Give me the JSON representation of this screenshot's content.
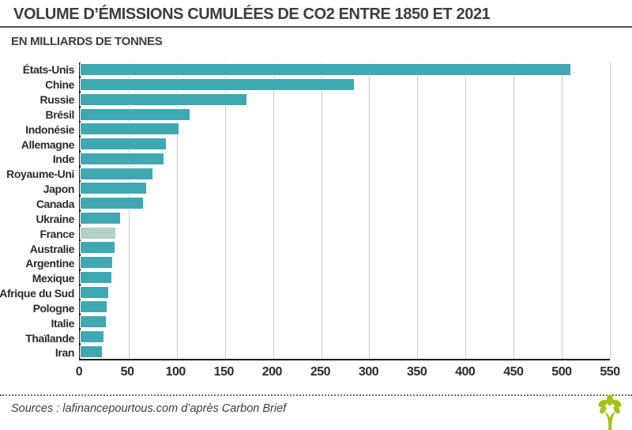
{
  "header": {
    "title": "VOLUME D’ÉMISSIONS CUMULÉES DE CO2 ENTRE 1850 ET 2021",
    "subtitle": "EN MILLIARDS DE TONNES"
  },
  "footer": {
    "source_text": "Sources : lafinancepourtous.com d’après Carbon Brief",
    "logo_icon": "tree-logo"
  },
  "colors": {
    "bar_teal": "#3fa8b1",
    "bar_highlight_pale_green": "#b0d1c3",
    "gridline": "#c9c9c9",
    "axis": "#1c1c1c",
    "text_dark": "#3d3d3d",
    "logo_green": "#a3c117"
  },
  "chart_data": {
    "type": "bar",
    "orientation": "horizontal",
    "title": "VOLUME D’ÉMISSIONS CUMULÉES DE CO2 ENTRE 1850 ET 2021",
    "subtitle": "EN MILLIARDS DE TONNES",
    "unit": "milliards de tonnes de CO2",
    "categories": [
      "États-Unis",
      "Chine",
      "Russie",
      "Brésil",
      "Indonésie",
      "Allemagne",
      "Inde",
      "Royaume-Uni",
      "Japon",
      "Canada",
      "Ukraine",
      "France",
      "Australie",
      "Argentine",
      "Mexique",
      "Afrique du Sud",
      "Pologne",
      "Italie",
      "Thaïlande",
      "Iran"
    ],
    "values": [
      509,
      284,
      172,
      113,
      102,
      89,
      86,
      75,
      68,
      65,
      41,
      36,
      35,
      33,
      32,
      29,
      27,
      26,
      24,
      22
    ],
    "highlighted_category": "France",
    "xlim": [
      0,
      550
    ],
    "x_ticks": [
      0,
      50,
      100,
      150,
      200,
      250,
      300,
      350,
      400,
      450,
      500,
      550
    ],
    "grid": true,
    "legend": false
  }
}
